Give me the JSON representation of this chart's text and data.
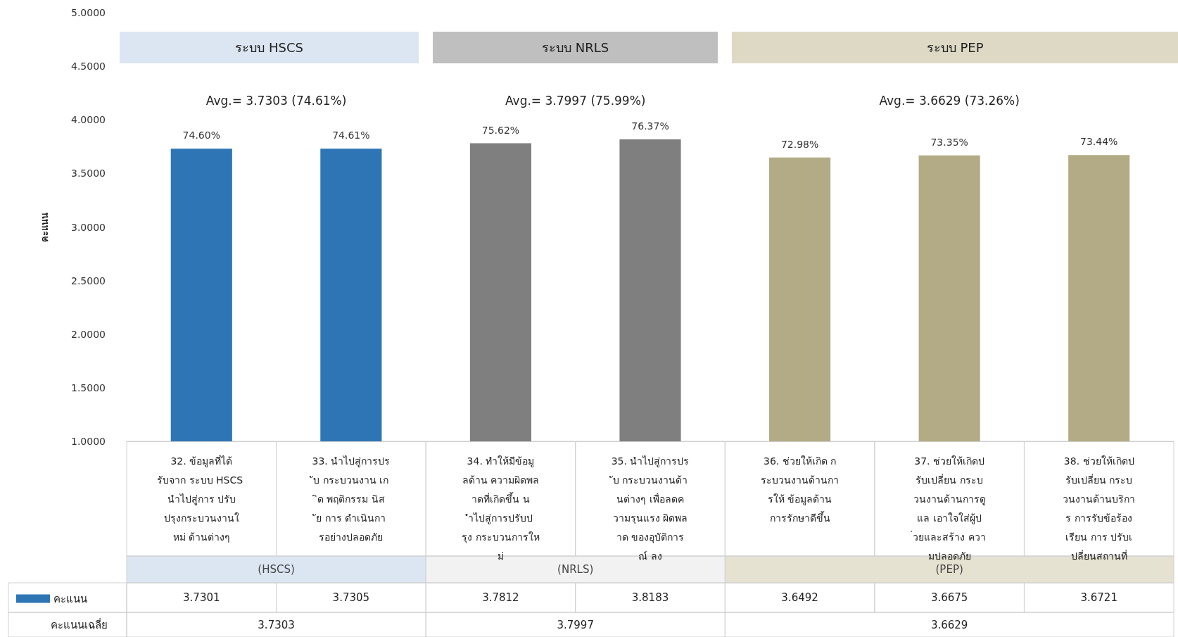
{
  "chart_data": {
    "type": "bar",
    "ylabel": "คะแนน",
    "categories": [
      "32. ข้อมูลที่ได้รับจาก ระบบ HSCS นำไปสู่การ ปรับปรุงกระบวนงานใหม่ ด้านต่างๆ",
      "33. นำไปสู่การปรับ กระบวนงาน เกิด พฤติกรรม นิสัย การ ดำเนินการอย่างปลอดภัย",
      "34. ทำให้มีข้อมูลด้าน ความผิดพลาดที่เกิดขึ้น นำไปสู่การปรับปรุง กระบวนการใหม่",
      "35. นำไปสู่การปรับ กระบวนงานด้านต่างๆ เพื่อลดความรุนแรง ผิดพลาด ของอุบัติการณ์ ลง",
      "36. ช่วยให้เกิด กระบวนงานด้านการให้ ข้อมูลด้านการรักษาดีขึ้น",
      "37. ช่วยให้เกิดปรับเปลี่ยน กระบวนงานด้านการดูแล เอาใจใส่ผู้ป่วยและสร้าง ความปลอดภัย",
      "38. ช่วยให้เกิดปรับเปลี่ยน กระบวนงานด้านบริการ การรับข้อร้องเรียน การ ปรับเปลี่ยนสถานที่"
    ],
    "series": [
      {
        "name": "คะแนน",
        "color": "#2e75b6",
        "values": [
          3.7301,
          3.7305,
          3.7812,
          3.8183,
          3.6492,
          3.6675,
          3.6721
        ],
        "colors": [
          "#2e75b6",
          "#2e75b6",
          "#7f7f7f",
          "#7f7f7f",
          "#b3ab86",
          "#b3ab86",
          "#b3ab86"
        ],
        "value_labels": [
          "3.7301",
          "3.7305",
          "3.7812",
          "3.8183",
          "3.6492",
          "3.6675",
          "3.6721"
        ]
      }
    ],
    "ylim": [
      1,
      5
    ],
    "yticks": [
      {
        "value": 1,
        "label": "1.0000"
      },
      {
        "value": 1.5,
        "label": "1.5000"
      },
      {
        "value": 2,
        "label": "2.0000"
      },
      {
        "value": 2.5,
        "label": "2.5000"
      },
      {
        "value": 3,
        "label": "3.0000"
      },
      {
        "value": 3.5,
        "label": "3.5000"
      },
      {
        "value": 4,
        "label": "4.0000"
      },
      {
        "value": 4.5,
        "label": "4.5000"
      },
      {
        "value": 5,
        "label": "5.0000"
      }
    ],
    "grid": false,
    "legend": "bottom left",
    "annotations": [
      "ระบบ HSCS",
      "ระบบ NRLS",
      "ระบบ PEP",
      "Avg.= 3.7303 (74.61%)",
      "Avg.= 3.7997 (75.99%)",
      "Avg.= 3.6629 (73.26%)",
      "(HSCS)",
      "(NRLS)",
      "(PEP)",
      "คะแนนเฉลี่ย",
      "3.7303",
      "3.7997",
      "3.6629",
      {
        "text": "74.60%",
        "x": "32. ข้อมูลที่ได้รับจาก ระบบ HSCS นำไปสู่การ ปรับปรุงกระบวนงานใหม่ ด้านต่างๆ",
        "y": 3.7301
      },
      {
        "text": "74.61%",
        "x": "33. นำไปสู่การปรับ กระบวนงาน เกิด พฤติกรรม นิสัย การ ดำเนินการอย่างปลอดภัย",
        "y": 3.7305
      },
      {
        "text": "75.62%",
        "x": "34. ทำให้มีข้อมูลด้าน ความผิดพลาดที่เกิดขึ้น นำไปสู่การปรับปรุง กระบวนการใหม่",
        "y": 3.7812
      },
      {
        "text": "76.37%",
        "x": "35. นำไปสู่การปรับ กระบวนงานด้านต่างๆ เพื่อลดความรุนแรง ผิดพลาด ของอุบัติการณ์ ลง",
        "y": 3.8183
      },
      {
        "text": "72.98%",
        "x": "36. ช่วยให้เกิด กระบวนงานด้านการให้ ข้อมูลด้านการรักษาดีขึ้น",
        "y": 3.6492
      },
      {
        "text": "73.35%",
        "x": "37. ช่วยให้เกิดปรับเปลี่ยน กระบวนงานด้านการดูแล เอาใจใส่ผู้ป่วยและสร้าง ความปลอดภัย",
        "y": 3.6675
      },
      {
        "text": "73.44%",
        "x": "38. ช่วยให้เกิดปรับเปลี่ยน กระบวนงานด้านบริการ การรับข้อร้องเรียน การ ปรับเปลี่ยนสถานที่",
        "y": 3.6721
      }
    ]
  }
}
